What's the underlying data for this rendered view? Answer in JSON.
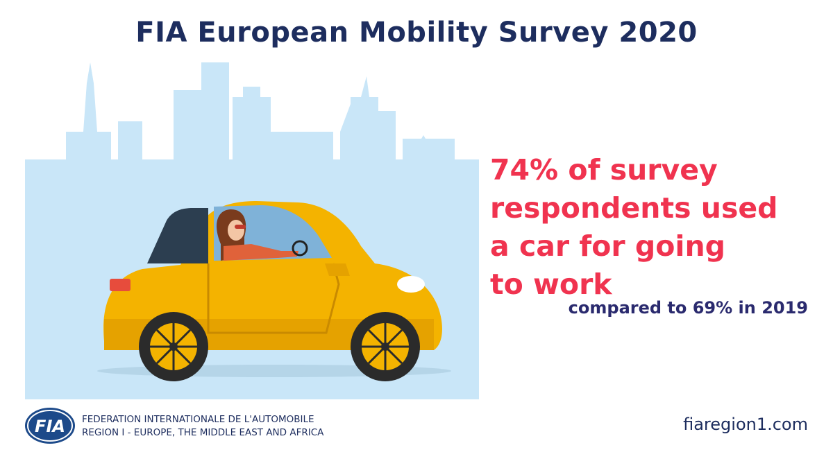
{
  "header": {
    "title": "FIA European Mobility Survey 2020"
  },
  "stat": {
    "lines": [
      "74% of survey",
      "respondents used",
      "a car for going",
      "to work"
    ],
    "comparison": "compared to 69% in 2019"
  },
  "footer": {
    "logo_text": "FIA",
    "org_line1": "FEDERATION INTERNATIONALE DE L'AUTOMOBILE",
    "org_line2": "REGION I - EUROPE, THE MIDDLE EAST AND AFRICA",
    "website": "fiaregion1.com"
  },
  "colors": {
    "navy": "#1d2d5e",
    "accent_red": "#f0334f",
    "skyline": "#c9e6f8",
    "car_yellow": "#f4b300"
  },
  "illustration": {
    "icons": [
      "city-skyline-icon",
      "yellow-car-icon",
      "driver-icon"
    ]
  }
}
